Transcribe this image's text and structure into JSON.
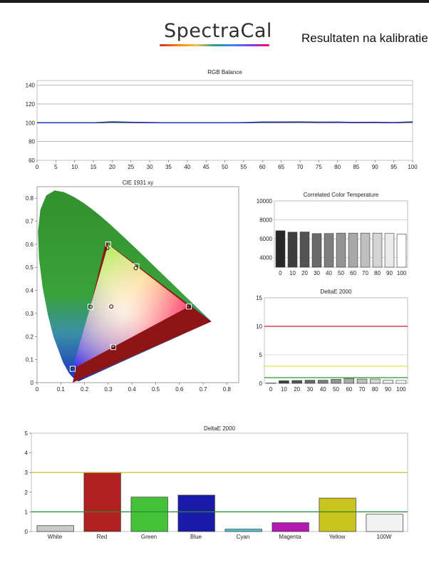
{
  "header": {
    "logo_text": "SpectraCal",
    "report_title": "Resultaten na kalibratie"
  },
  "chart_data": [
    {
      "id": "rgb",
      "type": "line",
      "title": "RGB Balance",
      "x": [
        0,
        5,
        10,
        15,
        20,
        25,
        30,
        35,
        40,
        45,
        50,
        55,
        60,
        65,
        70,
        75,
        80,
        85,
        90,
        95,
        100
      ],
      "series": [
        {
          "color": "#d62020",
          "values": [
            100,
            100,
            100,
            100,
            100.3,
            100.2,
            100.1,
            100,
            100,
            100,
            100,
            100.1,
            100.3,
            100.3,
            100.4,
            100.2,
            100.3,
            100.1,
            100.2,
            100,
            100.4
          ]
        },
        {
          "color": "#2a8f2a",
          "values": [
            100,
            100,
            100,
            100,
            100.5,
            100.4,
            100.2,
            100,
            100,
            100,
            100,
            100.1,
            100.4,
            100.5,
            100.6,
            100.4,
            100.5,
            100.3,
            100.3,
            100.2,
            100.6
          ]
        },
        {
          "color": "#1f2fbf",
          "values": [
            100,
            100,
            100,
            100,
            101,
            100.5,
            100.3,
            100,
            100,
            100,
            100,
            100.2,
            100.8,
            100.8,
            100.9,
            100.6,
            100.7,
            100.4,
            100.5,
            100.2,
            101
          ]
        }
      ],
      "ylim": [
        60,
        145
      ],
      "yticks": [
        60,
        80,
        100,
        120,
        140
      ],
      "xlim": [
        0,
        100
      ],
      "grid": true
    },
    {
      "id": "cie",
      "type": "scatter",
      "title": "CIE 1931 xy",
      "xlim": [
        0,
        0.85
      ],
      "ylim": [
        0,
        0.85
      ],
      "xticks": [
        0,
        0.1,
        0.2,
        0.3,
        0.4,
        0.5,
        0.6,
        0.7,
        0.8
      ],
      "yticks": [
        0,
        0.1,
        0.2,
        0.3,
        0.4,
        0.5,
        0.6,
        0.7,
        0.8
      ],
      "gamut_triangle": [
        [
          0.735,
          0.265
        ],
        [
          0.29,
          0.61
        ],
        [
          0.15,
          0.0
        ]
      ],
      "target_triangle": [
        [
          0.64,
          0.33
        ],
        [
          0.3,
          0.6
        ],
        [
          0.15,
          0.06
        ]
      ],
      "targets": [
        [
          0.64,
          0.33
        ],
        [
          0.3,
          0.6
        ],
        [
          0.15,
          0.06
        ],
        [
          0.225,
          0.329
        ],
        [
          0.321,
          0.154
        ],
        [
          0.419,
          0.505
        ],
        [
          0.3127,
          0.329
        ]
      ],
      "measured": [
        [
          0.64,
          0.33
        ],
        [
          0.296,
          0.584
        ],
        [
          0.15,
          0.06
        ],
        [
          0.225,
          0.329
        ],
        [
          0.322,
          0.155
        ],
        [
          0.416,
          0.497
        ],
        [
          0.313,
          0.33
        ]
      ]
    },
    {
      "id": "cct",
      "type": "bar",
      "title": "Correlated Color Temperature",
      "categories": [
        "0",
        "10",
        "20",
        "30",
        "40",
        "50",
        "60",
        "70",
        "80",
        "90",
        "100"
      ],
      "values": [
        6850,
        6700,
        6720,
        6550,
        6560,
        6600,
        6600,
        6600,
        6600,
        6560,
        6500
      ],
      "ylim": [
        3000,
        10000
      ],
      "yticks": [
        4000,
        6000,
        8000,
        10000
      ]
    },
    {
      "id": "de_gray",
      "type": "bar",
      "title": "DeltaE 2000",
      "categories": [
        "0",
        "10",
        "20",
        "30",
        "40",
        "50",
        "60",
        "70",
        "80",
        "90",
        "100"
      ],
      "values": [
        0.05,
        0.45,
        0.5,
        0.55,
        0.55,
        0.7,
        0.85,
        0.75,
        0.75,
        0.55,
        0.5
      ],
      "ylim": [
        0,
        15
      ],
      "yticks": [
        0,
        5,
        10,
        15
      ],
      "reference_lines": [
        {
          "value": 10,
          "color": "#cc2222"
        },
        {
          "value": 3,
          "color": "#e6e04a"
        },
        {
          "value": 1,
          "color": "#2a9a2a"
        }
      ]
    },
    {
      "id": "de_color",
      "type": "bar",
      "title": "DeltaE 2000",
      "categories": [
        "White",
        "Red",
        "Green",
        "Blue",
        "Cyan",
        "Magenta",
        "Yellow",
        "100W"
      ],
      "values": [
        0.3,
        3.0,
        1.75,
        1.85,
        0.12,
        0.45,
        1.7,
        0.88
      ],
      "colors": [
        "#c9c9c9",
        "#b02020",
        "#45c23a",
        "#1a1aa8",
        "#4fc5d0",
        "#b01ab0",
        "#c9c420",
        "#f2f2f2"
      ],
      "ylim": [
        0,
        5
      ],
      "yticks": [
        0,
        1,
        2,
        3,
        4,
        5
      ],
      "reference_lines": [
        {
          "value": 3,
          "color": "#b8b820"
        },
        {
          "value": 1,
          "color": "#2a8a2a"
        }
      ]
    }
  ]
}
